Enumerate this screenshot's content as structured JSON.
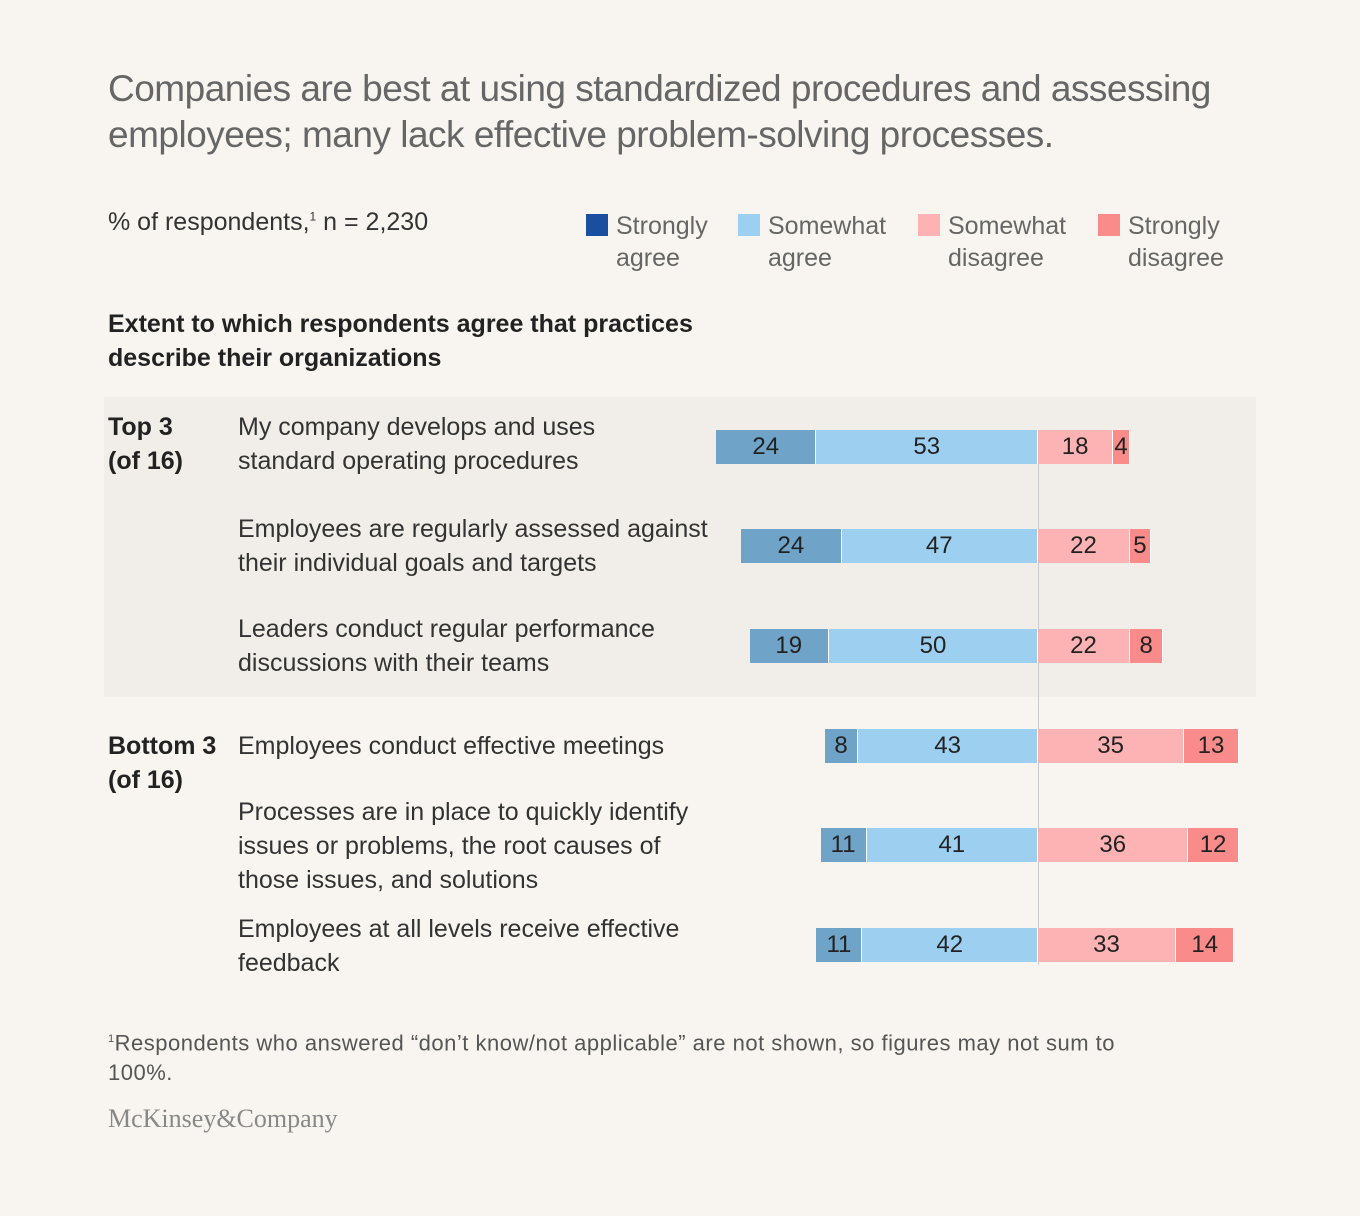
{
  "title": "Companies are best at using standardized procedures and assessing employees; many lack effective problem-solving processes.",
  "subtitle": "% of respondents,",
  "subtitle_sup": "1",
  "subtitle_n": " n = 2,230",
  "section_heading": "Extent to which respondents agree that practices describe their organizations",
  "groups": [
    {
      "label": "Top 3",
      "sub": "(of 16)"
    },
    {
      "label": "Bottom 3",
      "sub": "(of 16)"
    }
  ],
  "footnote_sup": "1",
  "footnote": "Respondents who answered “don’t know/not applicable” are not shown, so figures may not sum to 100%.",
  "logo": "McKinsey&Company",
  "chart_data": {
    "type": "bar",
    "orientation": "horizontal-diverging-stacked",
    "categories": [
      "My company develops and uses standard operating procedures",
      "Employees are regularly assessed against their individual goals and targets",
      "Leaders conduct regular performance discussions with their teams",
      "Employees conduct effective meetings",
      "Processes are in place to quickly identify issues or problems, the root causes of those issues, and solutions",
      "Employees at all levels receive effective feedback"
    ],
    "series": [
      {
        "name": "Strongly agree",
        "color": "#6fa3c8",
        "legend_color": "#1a4fa0",
        "values": [
          24,
          24,
          19,
          8,
          11,
          11
        ]
      },
      {
        "name": "Somewhat agree",
        "color": "#9dd0f0",
        "values": [
          53,
          47,
          50,
          43,
          41,
          42
        ]
      },
      {
        "name": "Somewhat disagree",
        "color": "#fdb3b3",
        "values": [
          18,
          22,
          22,
          35,
          36,
          33
        ]
      },
      {
        "name": "Strongly disagree",
        "color": "#f98b8b",
        "values": [
          4,
          5,
          8,
          13,
          12,
          14
        ]
      }
    ],
    "legend_placement": "top-right"
  }
}
